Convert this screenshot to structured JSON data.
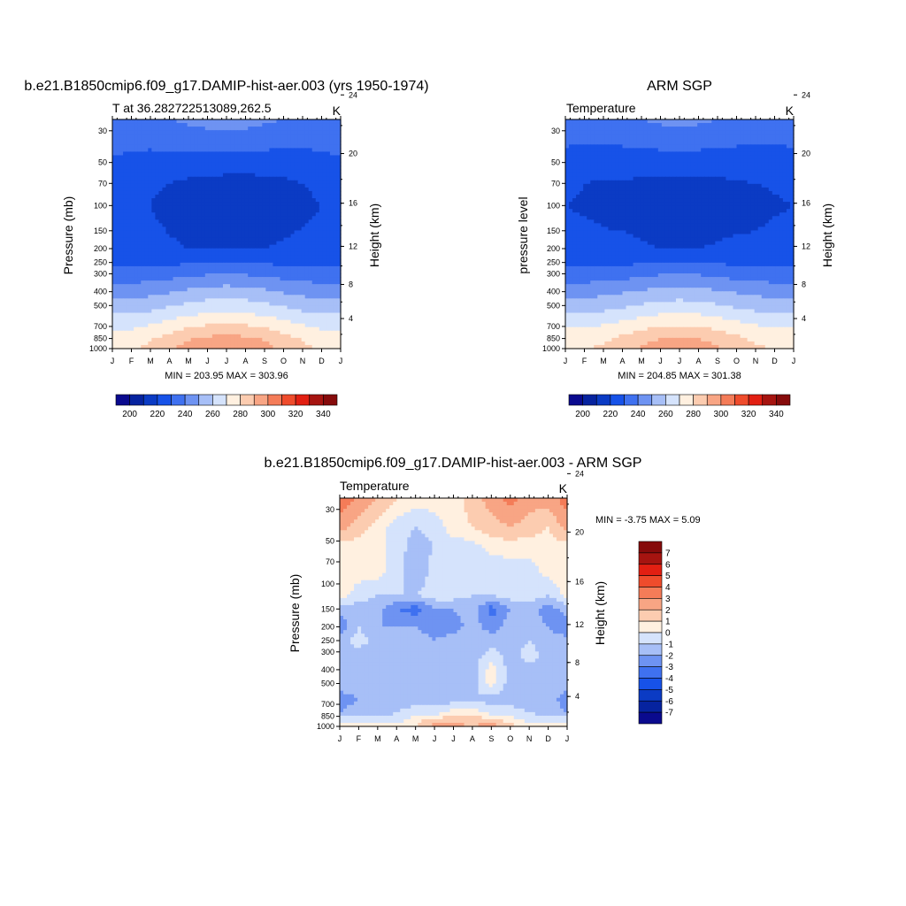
{
  "colors": {
    "abs_levels": [
      "#0a0a8e",
      "#06239f",
      "#0b3bc4",
      "#1752e8",
      "#3f71f0",
      "#6e93f2",
      "#a7bff7",
      "#d5e3fc",
      "#fff0e0",
      "#fcccb0",
      "#f8a584",
      "#f47c58",
      "#ef4c2c",
      "#e21f12",
      "#a61410",
      "#860b0b"
    ],
    "diff_levels": [
      "#0a0a8e",
      "#06239f",
      "#0b3bc4",
      "#1752e8",
      "#3f71f0",
      "#6e93f2",
      "#a7bff7",
      "#d5e3fc",
      "#fff0e0",
      "#fcccb0",
      "#f8a584",
      "#f47c58",
      "#ef4c2c",
      "#e21f12",
      "#a61410",
      "#860b0b"
    ]
  },
  "panels": {
    "model": {
      "title": "b.e21.B1850cmip6.f09_g17.DAMIP-hist-aer.003 (yrs 1950-1974)",
      "left_label": "T at 36.282722513089,262.5",
      "right_label": "K",
      "ylabel": "Pressure (mb)",
      "y2label": "Height (km)",
      "stats": "MIN = 203.95 MAX = 303.96"
    },
    "obs": {
      "title": "ARM SGP",
      "left_label": "Temperature",
      "right_label": "K",
      "ylabel": "pressure level",
      "y2label": "Height (km)",
      "stats": "MIN = 204.85 MAX = 301.38"
    },
    "diff": {
      "title": "b.e21.B1850cmip6.f09_g17.DAMIP-hist-aer.003 - ARM SGP",
      "left_label": "Temperature",
      "right_label": "K",
      "ylabel": "Pressure (mb)",
      "y2label": "Height (km)",
      "stats": "MIN =  -3.75 MAX =   5.09"
    }
  },
  "chart_data": [
    {
      "type": "heatmap",
      "title": "b.e21.B1850cmip6.f09_g17.DAMIP-hist-aer.003 (yrs 1950-1974)",
      "x_ticks": [
        "J",
        "F",
        "M",
        "A",
        "M",
        "J",
        "J",
        "A",
        "S",
        "O",
        "N",
        "D",
        "J"
      ],
      "y_ticks": [
        30,
        50,
        70,
        100,
        150,
        200,
        250,
        300,
        400,
        500,
        700,
        850,
        1000
      ],
      "y2_ticks": [
        24,
        20,
        16,
        12,
        8,
        4
      ],
      "ylim": [
        1000,
        25
      ],
      "y_scale": "log",
      "pressure_levels": [
        25,
        70,
        100,
        200,
        250,
        300,
        400,
        500,
        600,
        700,
        850,
        1000
      ],
      "values": [
        [
          238,
          238,
          238,
          240,
          242,
          244,
          245,
          244,
          242,
          240,
          238,
          238,
          238
        ],
        [
          224,
          222,
          221,
          220,
          218,
          217,
          216,
          216,
          217,
          218,
          220,
          222,
          224
        ],
        [
          222,
          221,
          220,
          218,
          216,
          214,
          213,
          213,
          214,
          216,
          218,
          220,
          222
        ],
        [
          223,
          223,
          222,
          221,
          220,
          219,
          219,
          219,
          220,
          221,
          222,
          223,
          223
        ],
        [
          227,
          227,
          227,
          228,
          229,
          230,
          231,
          230,
          229,
          228,
          227,
          227,
          227
        ],
        [
          234,
          234,
          235,
          236,
          238,
          239,
          240,
          239,
          238,
          236,
          235,
          234,
          234
        ],
        [
          245,
          245,
          247,
          249,
          252,
          254,
          255,
          254,
          252,
          249,
          247,
          245,
          245
        ],
        [
          254,
          254,
          256,
          259,
          262,
          264,
          265,
          264,
          262,
          259,
          256,
          254,
          254
        ],
        [
          262,
          262,
          264,
          268,
          271,
          273,
          274,
          273,
          271,
          268,
          264,
          262,
          262
        ],
        [
          268,
          268,
          271,
          275,
          279,
          281,
          282,
          281,
          279,
          275,
          271,
          268,
          268
        ],
        [
          275,
          275,
          279,
          284,
          289,
          292,
          293,
          292,
          289,
          284,
          279,
          275,
          275
        ],
        [
          278,
          279,
          283,
          288,
          294,
          299,
          300,
          298,
          293,
          287,
          282,
          279,
          278
        ]
      ],
      "levels": [
        200,
        210,
        220,
        230,
        240,
        250,
        260,
        270,
        280,
        290,
        300,
        310,
        320,
        330,
        340
      ],
      "colorbar_labels": [
        200,
        220,
        240,
        260,
        280,
        300,
        320,
        340
      ],
      "units": "K"
    },
    {
      "type": "heatmap",
      "title": "ARM SGP",
      "x_ticks": [
        "J",
        "F",
        "M",
        "A",
        "M",
        "J",
        "J",
        "A",
        "S",
        "O",
        "N",
        "D",
        "J"
      ],
      "y_ticks": [
        30,
        50,
        70,
        100,
        150,
        200,
        250,
        300,
        400,
        500,
        700,
        850,
        1000
      ],
      "y2_ticks": [
        24,
        20,
        16,
        12,
        8,
        4
      ],
      "ylim": [
        1000,
        25
      ],
      "y_scale": "log",
      "pressure_levels": [
        25,
        70,
        100,
        200,
        250,
        300,
        400,
        500,
        600,
        700,
        850,
        1000
      ],
      "values": [
        [
          236,
          236,
          237,
          238,
          240,
          242,
          243,
          242,
          240,
          238,
          236,
          236,
          236
        ],
        [
          222,
          220,
          219,
          219,
          218,
          217,
          217,
          217,
          218,
          219,
          220,
          221,
          222
        ],
        [
          220,
          219,
          218,
          217,
          216,
          215,
          214,
          214,
          215,
          216,
          217,
          219,
          220
        ],
        [
          223,
          223,
          222,
          222,
          221,
          220,
          220,
          220,
          221,
          222,
          222,
          223,
          223
        ],
        [
          227,
          227,
          227,
          228,
          229,
          230,
          230,
          230,
          229,
          228,
          227,
          227,
          227
        ],
        [
          234,
          234,
          235,
          236,
          237,
          239,
          239,
          239,
          237,
          236,
          235,
          234,
          234
        ],
        [
          246,
          246,
          247,
          249,
          251,
          253,
          254,
          253,
          251,
          249,
          247,
          246,
          246
        ],
        [
          255,
          255,
          256,
          258,
          261,
          263,
          264,
          263,
          261,
          258,
          256,
          255,
          255
        ],
        [
          263,
          263,
          264,
          267,
          270,
          272,
          273,
          272,
          270,
          267,
          264,
          263,
          263
        ],
        [
          269,
          269,
          271,
          274,
          277,
          280,
          281,
          280,
          277,
          274,
          271,
          269,
          269
        ],
        [
          275,
          275,
          278,
          282,
          287,
          290,
          291,
          290,
          287,
          282,
          278,
          275,
          275
        ],
        [
          279,
          279,
          282,
          286,
          291,
          295,
          297,
          295,
          291,
          286,
          282,
          279,
          279
        ]
      ],
      "levels": [
        200,
        210,
        220,
        230,
        240,
        250,
        260,
        270,
        280,
        290,
        300,
        310,
        320,
        330,
        340
      ],
      "colorbar_labels": [
        200,
        220,
        240,
        260,
        280,
        300,
        320,
        340
      ],
      "units": "K"
    },
    {
      "type": "heatmap",
      "title": "b.e21.B1850cmip6.f09_g17.DAMIP-hist-aer.003 - ARM SGP",
      "x_ticks": [
        "J",
        "F",
        "M",
        "A",
        "M",
        "J",
        "J",
        "A",
        "S",
        "O",
        "N",
        "D",
        "J"
      ],
      "y_ticks": [
        30,
        50,
        70,
        100,
        150,
        200,
        250,
        300,
        400,
        500,
        700,
        850,
        1000
      ],
      "y2_ticks": [
        24,
        20,
        16,
        12,
        8,
        4
      ],
      "ylim": [
        1000,
        25
      ],
      "y_scale": "log",
      "pressure_levels": [
        25,
        40,
        55,
        80,
        120,
        150,
        200,
        250,
        320,
        400,
        500,
        650,
        800,
        900,
        1000
      ],
      "values": [
        [
          3.5,
          3.0,
          2.0,
          1.0,
          0.5,
          0.5,
          0.5,
          1.5,
          2.5,
          3.5,
          2.5,
          2.5,
          3.5
        ],
        [
          2.5,
          1.5,
          0.5,
          -0.5,
          -1.0,
          -0.5,
          0.5,
          1.0,
          1.5,
          2.0,
          1.5,
          1.0,
          2.5
        ],
        [
          0.5,
          0.5,
          0.5,
          -0.5,
          -1.5,
          -1.0,
          -0.5,
          -0.5,
          0.5,
          0.5,
          0.5,
          0.5,
          0.5
        ],
        [
          0.5,
          0.5,
          0.5,
          -0.5,
          -2.0,
          -0.5,
          -0.5,
          -0.5,
          -1.0,
          -0.5,
          -0.5,
          0.5,
          0.5
        ],
        [
          0.5,
          -0.5,
          -1.0,
          -1.0,
          -1.0,
          -0.5,
          -0.5,
          -1.0,
          -1.0,
          -0.5,
          -0.5,
          -1.0,
          0.5
        ],
        [
          -1.5,
          -1.5,
          -1.5,
          -3.0,
          -3.5,
          -2.0,
          -2.0,
          -1.5,
          -3.5,
          -2.0,
          -1.5,
          -2.5,
          -1.5
        ],
        [
          -3.0,
          -1.0,
          -2.0,
          -2.0,
          -2.0,
          -2.5,
          -2.5,
          -1.5,
          -2.5,
          -1.5,
          -1.5,
          -2.0,
          -3.0
        ],
        [
          -1.5,
          -0.5,
          -1.5,
          -1.5,
          -1.5,
          -2.0,
          -1.5,
          -1.5,
          -1.5,
          -1.5,
          -1.0,
          -1.5,
          -1.5
        ],
        [
          -1.5,
          -1.5,
          -1.5,
          -1.5,
          -1.5,
          -2.0,
          -2.0,
          -1.5,
          -0.5,
          -1.5,
          -0.5,
          -1.5,
          -1.5
        ],
        [
          -1.0,
          -1.5,
          -1.5,
          -1.5,
          -1.5,
          -1.5,
          -1.5,
          -1.5,
          0.5,
          -1.5,
          -1.5,
          -1.5,
          -1.0
        ],
        [
          -1.5,
          -1.5,
          -1.5,
          -1.5,
          -1.5,
          -1.5,
          -1.5,
          -1.5,
          0.5,
          -1.5,
          -2.0,
          -1.5,
          -1.5
        ],
        [
          -2.5,
          -2.0,
          -1.5,
          -1.5,
          -1.5,
          -1.5,
          -1.5,
          -1.0,
          -1.5,
          -1.5,
          -1.5,
          -1.5,
          -2.5
        ],
        [
          -2.0,
          -1.5,
          -1.5,
          -1.0,
          -0.5,
          -0.5,
          0.5,
          0.5,
          -0.5,
          -0.5,
          -1.0,
          -1.5,
          -2.0
        ],
        [
          -0.5,
          -0.5,
          -0.5,
          -0.5,
          0.5,
          1.5,
          1.5,
          1.5,
          1.5,
          0.5,
          -0.5,
          -0.5,
          -0.5
        ],
        [
          0.5,
          0.5,
          0.5,
          0.5,
          1.0,
          2.5,
          2.5,
          2.0,
          2.5,
          1.5,
          0.5,
          0.5,
          0.5
        ]
      ],
      "levels": [
        -7,
        -6,
        -5,
        -4,
        -3,
        -2,
        -1,
        0,
        1,
        2,
        3,
        4,
        5,
        6,
        7
      ],
      "colorbar_labels": [
        7,
        6,
        5,
        4,
        3,
        2,
        1,
        0,
        -1,
        -2,
        -3,
        -4,
        -5,
        -6,
        -7
      ],
      "units": "K"
    }
  ]
}
